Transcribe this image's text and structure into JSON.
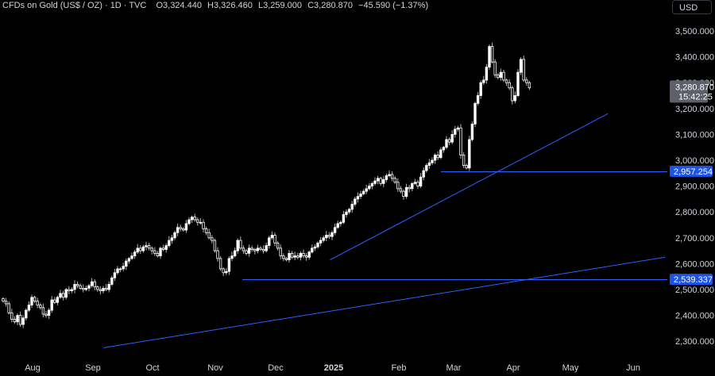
{
  "header": {
    "instrument": "CFDs on Gold (US$ / OZ) · 1D · TVC",
    "o_label": "O",
    "o_value": "3,324.440",
    "h_label": "H",
    "h_value": "3,326.460",
    "l_label": "L",
    "l_value": "3,259.000",
    "c_label": "C",
    "c_value": "3,280.870",
    "change": "−45.590 (−1.37%)"
  },
  "currency_button": "USD",
  "colors": {
    "background": "#000000",
    "candle_up": "#ffffff",
    "candle_down": "#ffffff",
    "trendline": "#2962ff",
    "level_tag": "#1e53e5",
    "price_tag": "#5d606b"
  },
  "chart_data": {
    "type": "candlestick",
    "title": "CFDs on Gold (US$ / OZ)",
    "interval": "1D",
    "source": "TVC",
    "y_ticks": [
      "3,500.000",
      "3,400.000",
      "3,300.000",
      "3,200.000",
      "3,100.000",
      "3,000.000",
      "2,900.000",
      "2,800.000",
      "2,700.000",
      "2,600.000",
      "2,500.000",
      "2,400.000",
      "2,300.000"
    ],
    "ylim": [
      2260,
      3560
    ],
    "x_ticks": [
      {
        "label": "Aug",
        "bold": false
      },
      {
        "label": "Sep",
        "bold": false
      },
      {
        "label": "Oct",
        "bold": false
      },
      {
        "label": "Nov",
        "bold": false
      },
      {
        "label": "Dec",
        "bold": false
      },
      {
        "label": "2025",
        "bold": true
      },
      {
        "label": "Feb",
        "bold": false
      },
      {
        "label": "Mar",
        "bold": false
      },
      {
        "label": "Apr",
        "bold": false
      },
      {
        "label": "May",
        "bold": false
      },
      {
        "label": "Jun",
        "bold": false
      }
    ],
    "last_price": {
      "value": "3,280.870",
      "countdown": "15:42:25"
    },
    "levels": [
      {
        "label": "2,957.254",
        "value": 2957.254
      },
      {
        "label": "2,539.337",
        "value": 2539.337
      }
    ],
    "closes": [
      2455,
      2445,
      2410,
      2385,
      2375,
      2400,
      2365,
      2390,
      2420,
      2440,
      2470,
      2455,
      2440,
      2430,
      2405,
      2400,
      2420,
      2460,
      2450,
      2470,
      2485,
      2470,
      2500,
      2495,
      2500,
      2520,
      2515,
      2505,
      2500,
      2505,
      2515,
      2530,
      2510,
      2500,
      2495,
      2505,
      2500,
      2520,
      2545,
      2565,
      2580,
      2580,
      2590,
      2610,
      2620,
      2630,
      2645,
      2660,
      2650,
      2665,
      2670,
      2660,
      2650,
      2640,
      2630,
      2660,
      2655,
      2670,
      2690,
      2700,
      2720,
      2740,
      2735,
      2730,
      2755,
      2770,
      2780,
      2770,
      2760,
      2760,
      2735,
      2720,
      2700,
      2690,
      2650,
      2620,
      2580,
      2565,
      2570,
      2620,
      2630,
      2650,
      2690,
      2660,
      2650,
      2640,
      2660,
      2655,
      2650,
      2660,
      2655,
      2650,
      2670,
      2700,
      2710,
      2680,
      2660,
      2630,
      2620,
      2615,
      2640,
      2625,
      2630,
      2625,
      2640,
      2630,
      2625,
      2645,
      2660,
      2665,
      2680,
      2690,
      2700,
      2710,
      2705,
      2720,
      2740,
      2755,
      2760,
      2790,
      2800,
      2810,
      2830,
      2850,
      2860,
      2870,
      2880,
      2890,
      2900,
      2910,
      2920,
      2930,
      2910,
      2925,
      2940,
      2945,
      2930,
      2915,
      2890,
      2880,
      2860,
      2895,
      2890,
      2910,
      2915,
      2900,
      2935,
      2960,
      2980,
      2990,
      3000,
      3020,
      3010,
      3040,
      3050,
      3080,
      3070,
      3100,
      3120,
      3125,
      3020,
      2980,
      2970,
      3080,
      3140,
      3220,
      3250,
      3300,
      3310,
      3360,
      3440,
      3380,
      3330,
      3320,
      3340,
      3310,
      3300,
      3280,
      3230,
      3250,
      3340,
      3390,
      3310,
      3300,
      3280
    ],
    "trendlines": [
      {
        "from": {
          "date": "2024-09-06",
          "value": 2275
        },
        "to": {
          "date": "2025-06-18",
          "value": 2625
        }
      },
      {
        "from": {
          "date": "2024-12-30",
          "value": 2615
        },
        "to": {
          "date": "2025-05-20",
          "value": 3180
        }
      }
    ]
  }
}
